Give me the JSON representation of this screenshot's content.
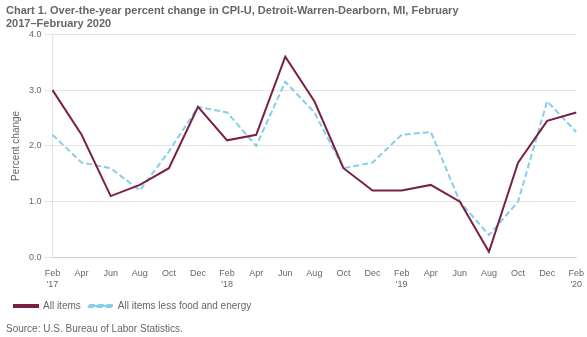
{
  "chart_data": {
    "type": "line",
    "title": [
      "Chart 1. Over-the-year percent change in CPI-U, Detroit-Warren-Dearborn, MI, February",
      "2017–February 2020"
    ],
    "ylabel": "Percent change",
    "source": "Source: U.S. Bureau of Labor Statistics.",
    "categories": [
      "Feb\n'17",
      "Apr",
      "Jun",
      "Aug",
      "Oct",
      "Dec",
      "Feb\n'18",
      "Apr",
      "Jun",
      "Aug",
      "Oct",
      "Dec",
      "Feb\n'19",
      "Apr",
      "Jun",
      "Aug",
      "Oct",
      "Dec",
      "Feb\n'20"
    ],
    "series": [
      {
        "name": "All items",
        "color": "#7b2045",
        "line_style": "solid",
        "values": [
          3.0,
          2.2,
          1.1,
          1.3,
          1.6,
          2.7,
          2.1,
          2.2,
          3.6,
          2.8,
          1.6,
          1.2,
          1.2,
          1.3,
          1.0,
          0.1,
          1.7,
          2.45,
          2.6
        ]
      },
      {
        "name": "All items less food and energy",
        "color": "#87CEEB",
        "line_style": "dashed",
        "values": [
          2.2,
          1.7,
          1.6,
          1.2,
          1.9,
          2.7,
          2.6,
          2.0,
          3.15,
          2.6,
          1.6,
          1.7,
          2.2,
          2.25,
          1.0,
          0.4,
          1.0,
          2.8,
          2.25
        ]
      }
    ],
    "ylim": [
      0.0,
      4.0
    ],
    "yticks": [
      {
        "value": 0,
        "label": "0.0"
      },
      {
        "value": 1,
        "label": "1.0"
      },
      {
        "value": 2,
        "label": "2.0"
      },
      {
        "value": 3,
        "label": "3.0"
      },
      {
        "value": 4,
        "label": "4.0"
      }
    ],
    "grid": "y",
    "legend": "lower left"
  }
}
